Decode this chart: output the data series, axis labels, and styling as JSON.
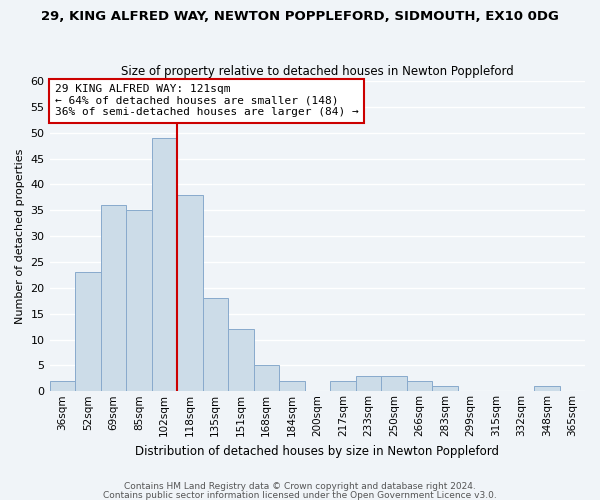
{
  "title": "29, KING ALFRED WAY, NEWTON POPPLEFORD, SIDMOUTH, EX10 0DG",
  "subtitle": "Size of property relative to detached houses in Newton Poppleford",
  "xlabel": "Distribution of detached houses by size in Newton Poppleford",
  "ylabel": "Number of detached properties",
  "bar_labels": [
    "36sqm",
    "52sqm",
    "69sqm",
    "85sqm",
    "102sqm",
    "118sqm",
    "135sqm",
    "151sqm",
    "168sqm",
    "184sqm",
    "200sqm",
    "217sqm",
    "233sqm",
    "250sqm",
    "266sqm",
    "283sqm",
    "299sqm",
    "315sqm",
    "332sqm",
    "348sqm",
    "365sqm"
  ],
  "bar_values": [
    2,
    23,
    36,
    35,
    49,
    38,
    18,
    12,
    5,
    2,
    0,
    2,
    3,
    3,
    2,
    1,
    0,
    0,
    0,
    1,
    0
  ],
  "bar_color": "#ccdce8",
  "bar_edgecolor": "#88aacc",
  "vline_color": "#cc0000",
  "vline_x": 4.5,
  "property_line_label": "29 KING ALFRED WAY: 121sqm",
  "annotation_line1": "← 64% of detached houses are smaller (148)",
  "annotation_line2": "36% of semi-detached houses are larger (84) →",
  "ylim": [
    0,
    60
  ],
  "yticks": [
    0,
    5,
    10,
    15,
    20,
    25,
    30,
    35,
    40,
    45,
    50,
    55,
    60
  ],
  "footnote1": "Contains HM Land Registry data © Crown copyright and database right 2024.",
  "footnote2": "Contains public sector information licensed under the Open Government Licence v3.0.",
  "background_color": "#f0f4f8",
  "grid_color": "#ffffff",
  "title_fontsize": 9.5,
  "subtitle_fontsize": 8.5,
  "xlabel_fontsize": 8.5,
  "ylabel_fontsize": 8,
  "tick_fontsize": 8,
  "xtick_fontsize": 7.5,
  "annot_fontsize": 8,
  "footnote_fontsize": 6.5
}
